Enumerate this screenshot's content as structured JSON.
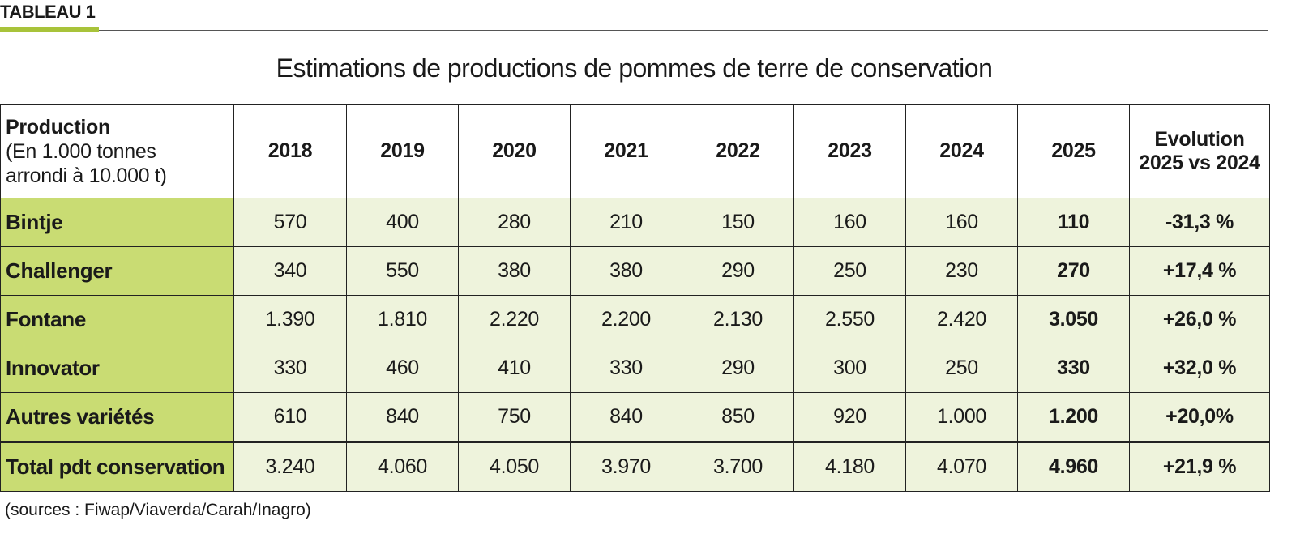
{
  "header": {
    "label": "TABLEAU 1",
    "title": "Estimations de productions de pommes de terre de conservation"
  },
  "table": {
    "corner": {
      "title": "Production",
      "note_lines": [
        "(En 1.000 tonnes",
        "arrondi à 10.000 t)"
      ]
    },
    "columns": [
      "2018",
      "2019",
      "2020",
      "2021",
      "2022",
      "2023",
      "2024",
      "2025",
      [
        "Evolution",
        "2025 vs 2024"
      ]
    ],
    "rows": [
      [
        "Bintje",
        "570",
        "400",
        "280",
        "210",
        "150",
        "160",
        "160",
        "110",
        "-31,3 %"
      ],
      [
        "Challenger",
        "340",
        "550",
        "380",
        "380",
        "290",
        "250",
        "230",
        "270",
        "+17,4 %"
      ],
      [
        "Fontane",
        "1.390",
        "1.810",
        "2.220",
        "2.200",
        "2.130",
        "2.550",
        "2.420",
        "3.050",
        "+26,0 %"
      ],
      [
        "Innovator",
        "330",
        "460",
        "410",
        "330",
        "290",
        "300",
        "250",
        "330",
        "+32,0 %"
      ],
      [
        "Autres variétés",
        "610",
        "840",
        "750",
        "840",
        "850",
        "920",
        "1.000",
        "1.200",
        "+20,0%"
      ],
      [
        "Total pdt conservation",
        "3.240",
        "4.060",
        "4.050",
        "3.970",
        "3.700",
        "4.180",
        "4.070",
        "4.960",
        "+21,9 %"
      ]
    ]
  },
  "footer": {
    "source": "(sources : Fiwap/Viaverda/Carah/Inagro)"
  }
}
